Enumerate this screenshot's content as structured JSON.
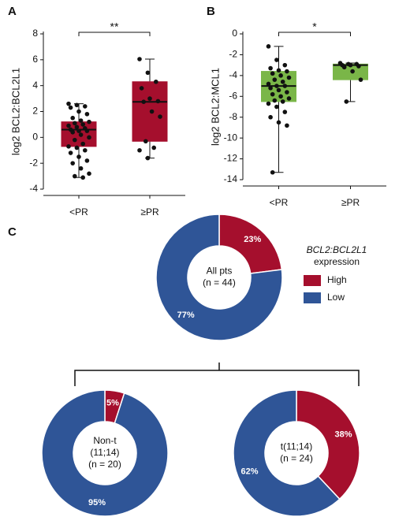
{
  "chart_data": [
    {
      "type": "box",
      "panel_label": "A",
      "ylabel": "log2 BCL2:BCL2L1",
      "categories": [
        "<PR",
        "≥PR"
      ],
      "color": "#a50f2d",
      "ylim": [
        -4,
        8
      ],
      "yticks": [
        -4,
        -2,
        0,
        2,
        4,
        6,
        8
      ],
      "significance": "**",
      "boxes": [
        {
          "min": -3.1,
          "q1": -0.7,
          "median": 0.6,
          "q3": 1.2,
          "max": 2.6
        },
        {
          "min": -1.6,
          "q1": -0.3,
          "median": 2.75,
          "q3": 4.3,
          "max": 6.05
        }
      ],
      "points": [
        [
          2.6,
          2.5,
          2.4,
          2.3,
          2.0,
          1.8,
          1.5,
          1.3,
          1.2,
          1.1,
          1.0,
          0.9,
          0.8,
          0.7,
          0.6,
          0.5,
          0.5,
          0.4,
          0.2,
          0.0,
          -0.2,
          -0.5,
          -0.7,
          -0.8,
          -1.0,
          -1.2,
          -1.5,
          -1.8,
          -2.0,
          -2.4,
          -2.8,
          -3.0,
          -3.1
        ],
        [
          6.05,
          5.0,
          4.3,
          3.8,
          3.0,
          2.8,
          2.75,
          2.0,
          1.6,
          -0.3,
          -0.8,
          -1.0,
          -1.6
        ]
      ]
    },
    {
      "type": "box",
      "panel_label": "B",
      "ylabel": "log2 BCL2:MCL1",
      "categories": [
        "<PR",
        "≥PR"
      ],
      "color": "#7ab648",
      "ylim": [
        -14,
        0
      ],
      "yticks": [
        -14,
        -12,
        -10,
        -8,
        -6,
        -4,
        -2,
        0
      ],
      "significance": "*",
      "boxes": [
        {
          "min": -13.3,
          "q1": -6.5,
          "median": -5.0,
          "q3": -3.6,
          "max": -1.2
        },
        {
          "min": -6.5,
          "q1": -4.4,
          "median": -3.0,
          "q3": -2.9,
          "max": -2.8
        }
      ],
      "points": [
        [
          -1.2,
          -2.5,
          -3.0,
          -3.3,
          -3.5,
          -3.6,
          -3.8,
          -4.0,
          -4.2,
          -4.4,
          -4.6,
          -4.8,
          -5.0,
          -5.0,
          -5.2,
          -5.4,
          -5.6,
          -5.8,
          -6.0,
          -6.2,
          -6.4,
          -6.5,
          -6.7,
          -7.0,
          -7.5,
          -8.0,
          -8.5,
          -8.8,
          -13.3
        ],
        [
          -2.8,
          -2.9,
          -2.9,
          -3.0,
          -3.0,
          -3.1,
          -3.2,
          -3.6,
          -4.4,
          -6.5
        ]
      ]
    },
    {
      "type": "donut",
      "panel_label": "C",
      "categories": [
        "High",
        "Low"
      ],
      "colors": [
        "#a50f2d",
        "#2f5597"
      ],
      "values": [
        23,
        77
      ],
      "value_labels": [
        "23%",
        "77%"
      ],
      "center_text": [
        "All pts",
        "(n = 44)"
      ],
      "legend_title": [
        "BCL2:BCL2L1",
        "expression"
      ]
    },
    {
      "type": "donut",
      "categories": [
        "High",
        "Low"
      ],
      "colors": [
        "#a50f2d",
        "#2f5597"
      ],
      "values": [
        5,
        95
      ],
      "value_labels": [
        "5%",
        "95%"
      ],
      "center_text": [
        "Non-t",
        "(11;14)",
        "(n = 20)"
      ]
    },
    {
      "type": "donut",
      "categories": [
        "High",
        "Low"
      ],
      "colors": [
        "#a50f2d",
        "#2f5597"
      ],
      "values": [
        38,
        62
      ],
      "value_labels": [
        "38%",
        "62%"
      ],
      "center_text": [
        "t(11;14)",
        "(n = 24)"
      ]
    }
  ]
}
